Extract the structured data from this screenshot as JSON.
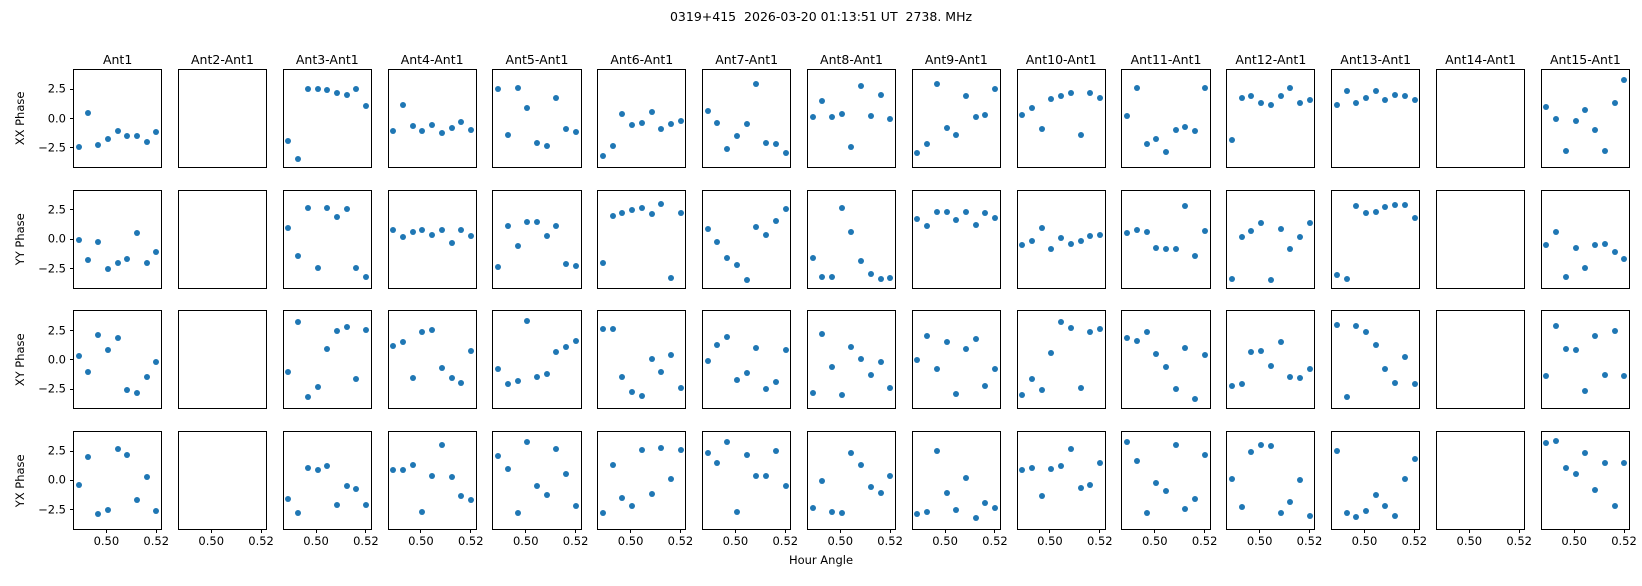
{
  "title": "0319+415  2026-03-20 01:13:51 UT  2738. MHz",
  "xlabel": "Hour Angle",
  "row_labels": [
    "XX Phase",
    "YY Phase",
    "XY Phase",
    "YX Phase"
  ],
  "y_tick_labels": [
    "2.5",
    "0.0",
    "−2.5"
  ],
  "x_tick_labels": [
    "0.50",
    "0.52"
  ],
  "chart_data": {
    "type": "scatter",
    "layout": "4 rows (polarization) x 15 columns (antenna baseline) grid of subplots, shared axes, outer tick labels only",
    "marker_color": "#1f77b4",
    "marker_size_px": 6,
    "xlim": [
      0.487,
      0.522
    ],
    "ylim": [
      -4.15,
      4.15
    ],
    "x_tick_values": [
      0.5,
      0.52
    ],
    "y_tick_values": [
      2.5,
      0.0,
      -2.5
    ],
    "rows": [
      "XX",
      "YY",
      "XY",
      "YX"
    ],
    "columns": [
      "Ant1",
      "Ant2-Ant1",
      "Ant3-Ant1",
      "Ant4-Ant1",
      "Ant5-Ant1",
      "Ant6-Ant1",
      "Ant7-Ant1",
      "Ant8-Ant1",
      "Ant9-Ant1",
      "Ant10-Ant1",
      "Ant11-Ant1",
      "Ant12-Ant1",
      "Ant13-Ant1",
      "Ant14-Ant1",
      "Ant15-Ant1"
    ],
    "x": [
      0.4889,
      0.4928,
      0.4967,
      0.5006,
      0.5045,
      0.5084,
      0.5123,
      0.5162,
      0.5201
    ],
    "panels": {
      "Ant1": {
        "XX": [
          -2.45,
          0.5,
          -2.25,
          -1.75,
          -1.05,
          -1.45,
          -1.45,
          -2.0,
          -1.1
        ],
        "YY": [
          -0.1,
          -1.75,
          -0.2,
          -2.55,
          -2.05,
          -1.7,
          0.55,
          -2.0,
          -1.1
        ],
        "XY": [
          0.3,
          -1.0,
          2.1,
          0.8,
          1.9,
          -2.6,
          -2.8,
          -1.5,
          -0.2
        ],
        "YX": [
          -0.4,
          2.0,
          -2.9,
          -2.5,
          2.7,
          2.2,
          -1.7,
          0.3,
          -2.6
        ]
      },
      "Ant2-Ant1": null,
      "Ant3-Ant1": {
        "XX": [
          -1.9,
          -3.4,
          2.55,
          2.5,
          2.45,
          2.2,
          2.0,
          2.55,
          1.05
        ],
        "YY": [
          0.95,
          -1.4,
          2.7,
          -2.45,
          2.65,
          1.9,
          2.55,
          -2.45,
          -3.2
        ],
        "XY": [
          -1.05,
          3.2,
          -3.2,
          -2.35,
          0.95,
          2.45,
          2.8,
          -1.6,
          2.55
        ],
        "YX": [
          -1.55,
          -2.75,
          1.1,
          0.9,
          1.25,
          -2.1,
          -0.45,
          -0.7,
          -2.1
        ]
      },
      "Ant4-Ant1": {
        "XX": [
          -1.05,
          1.2,
          -0.65,
          -1.05,
          -0.55,
          -1.25,
          -0.8,
          -0.3,
          -1.0
        ],
        "YY": [
          0.75,
          0.2,
          0.6,
          0.8,
          0.35,
          0.8,
          -0.35,
          0.8,
          0.3
        ],
        "XY": [
          1.15,
          1.55,
          -1.55,
          2.4,
          2.55,
          -0.7,
          -1.55,
          -1.95,
          0.75
        ],
        "YX": [
          0.9,
          0.9,
          1.35,
          -2.65,
          0.35,
          3.0,
          0.3,
          -1.3,
          -1.7
        ]
      },
      "Ant5-Ant1": {
        "XX": [
          2.55,
          -1.4,
          2.6,
          0.9,
          -2.1,
          -2.3,
          1.8,
          -0.85,
          -1.1
        ],
        "YY": [
          -2.4,
          1.1,
          -0.55,
          1.5,
          1.45,
          0.25,
          1.15,
          -2.15,
          -2.25
        ],
        "XY": [
          -0.75,
          -2.05,
          -1.8,
          3.3,
          -1.45,
          -1.2,
          0.65,
          1.1,
          1.65
        ],
        "YX": [
          2.05,
          0.95,
          -2.75,
          3.25,
          -0.5,
          -1.2,
          2.7,
          0.55,
          -2.2
        ]
      },
      "Ant6-Ant1": {
        "XX": [
          -3.2,
          -2.3,
          0.4,
          -0.5,
          -0.4,
          0.55,
          -0.9,
          -0.45,
          -0.2
        ],
        "YY": [
          -2.0,
          2.0,
          2.2,
          2.5,
          2.65,
          2.15,
          3.0,
          -3.3,
          2.25
        ],
        "XY": [
          2.6,
          2.65,
          -1.5,
          -2.75,
          -3.1,
          0.1,
          -1.05,
          0.45,
          -2.4
        ],
        "YX": [
          -2.75,
          1.3,
          -1.5,
          -2.15,
          2.6,
          -1.15,
          2.75,
          0.1,
          2.6
        ]
      },
      "Ant7-Ant1": {
        "XX": [
          0.65,
          -0.4,
          -2.6,
          -1.45,
          -0.45,
          2.95,
          -2.1,
          -2.2,
          -2.95
        ],
        "YY": [
          0.85,
          -0.25,
          -1.6,
          -2.2,
          -3.45,
          1.05,
          0.4,
          1.55,
          2.6
        ],
        "XY": [
          -0.1,
          1.3,
          1.95,
          -1.7,
          -1.15,
          1.0,
          -2.45,
          -1.85,
          0.8
        ],
        "YX": [
          2.3,
          1.5,
          3.25,
          -2.65,
          2.2,
          0.35,
          0.35,
          2.5,
          -0.45
        ]
      },
      "Ant8-Ant1": {
        "XX": [
          0.1,
          1.5,
          0.1,
          0.4,
          -2.45,
          2.8,
          0.25,
          2.0,
          0.0
        ],
        "YY": [
          -1.6,
          -3.25,
          -3.25,
          2.65,
          0.6,
          -1.85,
          -2.95,
          -3.4,
          -3.3
        ],
        "XY": [
          -2.85,
          2.2,
          -0.6,
          -3.0,
          1.1,
          0.05,
          -1.3,
          -0.15,
          -2.4
        ],
        "YX": [
          -2.35,
          -0.05,
          -2.65,
          -2.75,
          2.3,
          1.3,
          -0.6,
          -1.05,
          0.4
        ]
      },
      "Ant9-Ant1": {
        "XX": [
          -2.95,
          -2.15,
          2.95,
          -0.8,
          -1.4,
          1.95,
          0.1,
          0.35,
          2.55
        ],
        "YY": [
          1.75,
          1.1,
          2.35,
          2.35,
          1.65,
          2.3,
          1.2,
          2.2,
          1.85
        ],
        "XY": [
          -0.05,
          2.05,
          -0.8,
          1.5,
          -2.95,
          0.9,
          1.75,
          -2.2,
          -0.8
        ],
        "YX": [
          -2.9,
          -2.7,
          2.5,
          -1.1,
          -2.55,
          0.2,
          -3.2,
          -1.95,
          -2.35
        ]
      },
      "Ant10-Ant1": {
        "XX": [
          0.3,
          0.9,
          -0.9,
          1.7,
          1.9,
          2.15,
          -1.4,
          2.15,
          1.75
        ],
        "YY": [
          -0.45,
          -0.15,
          0.95,
          -0.8,
          0.1,
          -0.4,
          -0.15,
          0.25,
          0.35
        ],
        "XY": [
          -3.0,
          -1.6,
          -2.55,
          0.55,
          3.25,
          2.75,
          -2.4,
          2.4,
          2.65
        ],
        "YX": [
          0.9,
          1.1,
          -1.35,
          0.95,
          1.2,
          2.7,
          -0.65,
          -0.35,
          1.45
        ]
      },
      "Ant11-Ant1": {
        "XX": [
          0.2,
          2.6,
          -2.2,
          -1.7,
          -2.85,
          -0.95,
          -0.75,
          -1.05,
          2.6
        ],
        "YY": [
          0.55,
          0.8,
          0.6,
          -0.75,
          -0.85,
          -0.8,
          2.85,
          -1.45,
          0.7
        ],
        "XY": [
          1.9,
          1.6,
          2.35,
          0.5,
          -0.6,
          -2.45,
          1.0,
          -3.3,
          0.45
        ],
        "YX": [
          3.25,
          1.7,
          -2.75,
          -0.25,
          -0.9,
          3.05,
          -2.45,
          -1.6,
          2.2
        ]
      },
      "Ant12-Ant1": {
        "XX": [
          -1.85,
          1.75,
          1.9,
          1.3,
          1.15,
          1.9,
          2.6,
          1.3,
          1.55
        ],
        "YY": [
          -3.4,
          0.15,
          0.7,
          1.4,
          -3.45,
          0.85,
          -0.8,
          0.15,
          1.35
        ],
        "XY": [
          -2.25,
          -2.05,
          0.7,
          0.75,
          -0.55,
          1.5,
          -1.5,
          -1.55,
          -0.8
        ],
        "YX": [
          0.1,
          -2.3,
          2.4,
          3.05,
          2.9,
          -2.75,
          -1.8,
          0.0,
          -3.05
        ]
      },
      "Ant13-Ant1": {
        "XX": [
          1.15,
          2.4,
          1.35,
          1.8,
          2.4,
          1.6,
          2.05,
          1.95,
          1.6
        ],
        "YY": [
          -3.05,
          -3.4,
          2.85,
          2.25,
          2.35,
          2.75,
          2.95,
          2.95,
          1.8
        ],
        "XY": [
          3.0,
          -3.2,
          2.85,
          2.4,
          1.3,
          -0.8,
          -1.95,
          0.25,
          -2.05
        ],
        "YX": [
          2.5,
          -2.8,
          -3.15,
          -2.6,
          -1.2,
          -2.2,
          -3.0,
          0.15,
          1.85
        ]
      },
      "Ant14-Ant1": null,
      "Ant15-Ant1": {
        "XX": [
          1.0,
          0.0,
          -2.75,
          -0.2,
          0.7,
          -1.0,
          -2.75,
          1.3,
          3.3
        ],
        "YY": [
          -0.45,
          0.6,
          -3.2,
          -0.75,
          -2.45,
          -0.45,
          -0.4,
          -1.05,
          -1.7
        ],
        "XY": [
          -1.4,
          2.85,
          0.9,
          0.8,
          -2.65,
          2.0,
          -1.3,
          2.45,
          -1.4
        ],
        "YX": [
          3.2,
          3.4,
          1.05,
          0.55,
          2.35,
          -0.85,
          1.5,
          -2.2,
          1.5
        ]
      }
    }
  }
}
